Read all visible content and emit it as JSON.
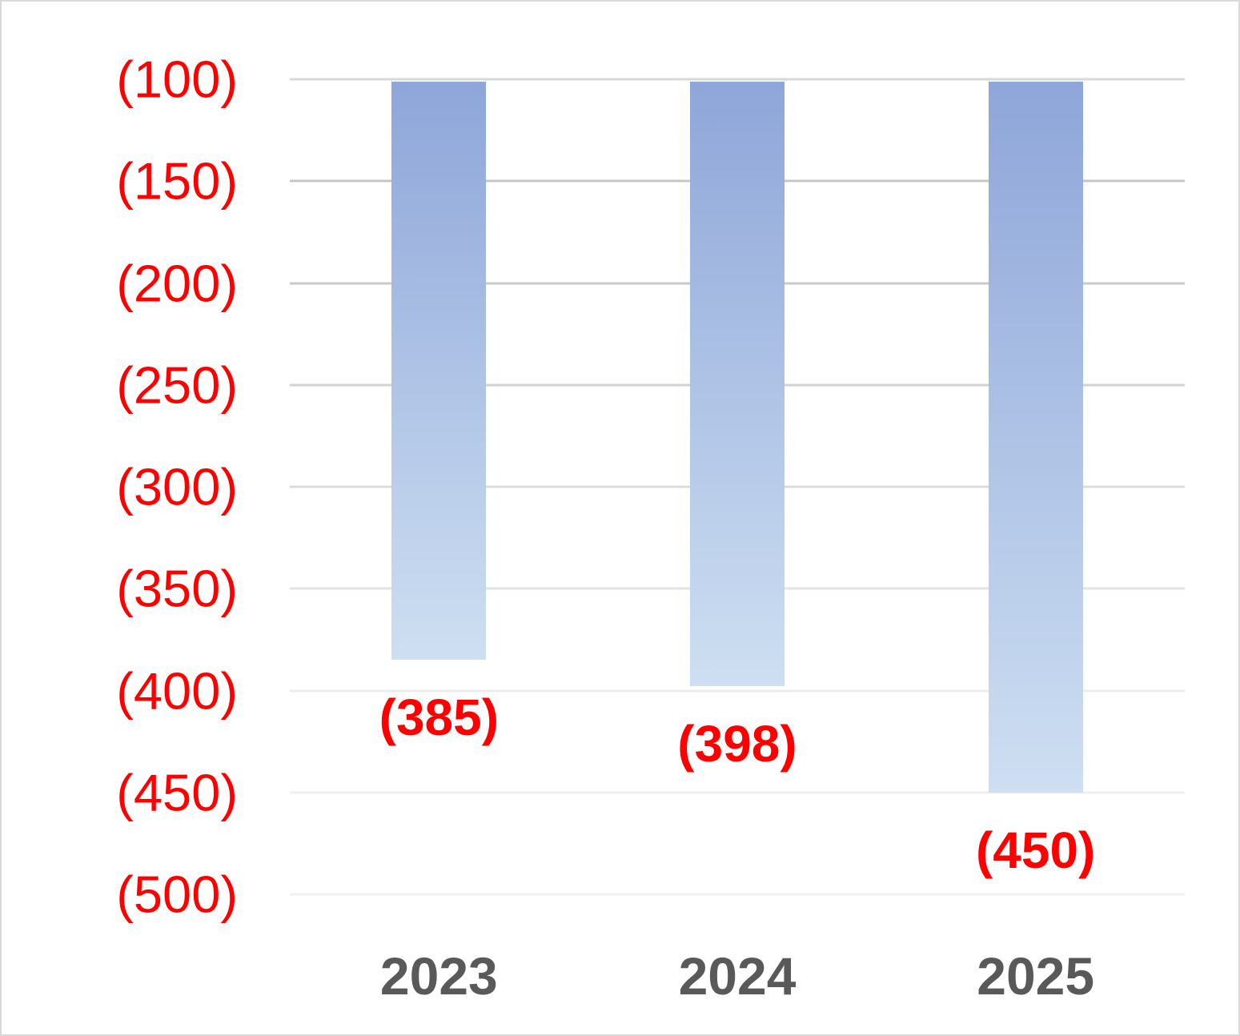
{
  "chart_data": {
    "type": "bar",
    "title": "",
    "xlabel": "",
    "ylabel": "",
    "categories": [
      "2023",
      "2024",
      "2025"
    ],
    "series": [
      {
        "name": "",
        "values": [
          -385,
          -398,
          -450
        ],
        "data_labels": [
          "(385)",
          "(398)",
          "(450)"
        ]
      }
    ],
    "y_axis": {
      "min": -500,
      "max": -100,
      "tick_interval": 50,
      "number_format": "negative-parentheses",
      "label_color": "#ff0000",
      "ticks": [
        {
          "label": "(100)",
          "value": -100,
          "gridline_color": "#d8d8d8"
        },
        {
          "label": "(150)",
          "value": -150,
          "gridline_color": "#c6c6c6"
        },
        {
          "label": "(200)",
          "value": -200,
          "gridline_color": "#cacaca"
        },
        {
          "label": "(250)",
          "value": -250,
          "gridline_color": "#d2d2d2"
        },
        {
          "label": "(300)",
          "value": -300,
          "gridline_color": "#dcdcdc"
        },
        {
          "label": "(350)",
          "value": -350,
          "gridline_color": "#e3e3e3"
        },
        {
          "label": "(400)",
          "value": -400,
          "gridline_color": "#ececec"
        },
        {
          "label": "(450)",
          "value": -450,
          "gridline_color": "#efefef"
        },
        {
          "label": "(500)",
          "value": -500,
          "gridline_color": "#f2f2f2"
        }
      ]
    },
    "x_axis": {
      "label_color": "#595959"
    },
    "data_label_color": "#ff0000",
    "bar_style": {
      "gradient_top": "#8ea6d9",
      "gradient_bottom": "#cedff2"
    },
    "legend": "none",
    "grid": true,
    "plot_background": "#ffffff",
    "frame_border_color": "#d9d9d9"
  }
}
